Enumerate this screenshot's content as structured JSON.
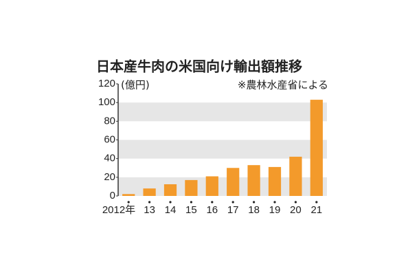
{
  "chart_data": {
    "type": "bar",
    "title": "日本産牛肉の米国向け輸出額推移",
    "y_unit": "(億円)",
    "source": "※農林水産省による",
    "categories": [
      "2012年",
      "13",
      "14",
      "15",
      "16",
      "17",
      "18",
      "19",
      "20",
      "21"
    ],
    "values": [
      2,
      8,
      12.5,
      17,
      21,
      30,
      33,
      31,
      42,
      103
    ],
    "color": "#f39a2b",
    "ylim": [
      0,
      120
    ],
    "yticks": [
      0,
      20,
      40,
      60,
      80,
      100,
      120
    ],
    "bands": true,
    "band_color": "#e6e6e6"
  }
}
